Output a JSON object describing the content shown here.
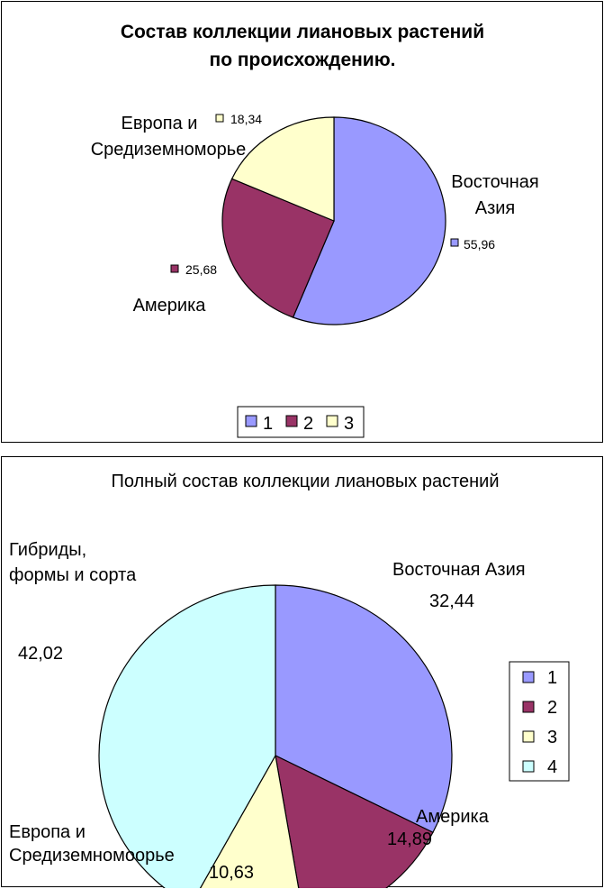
{
  "chart_data": [
    {
      "type": "pie",
      "title": "Состав коллекции лиановых растений по происхождению.",
      "title_lines": [
        "Состав коллекции лиановых растений",
        "по происхождению."
      ],
      "categories": [
        "1",
        "2",
        "3"
      ],
      "slice_names": [
        [
          "Восточная",
          "Азия"
        ],
        [
          "Америка"
        ],
        [
          "Европа и",
          "Средиземноморье"
        ]
      ],
      "values": [
        55.96,
        25.68,
        18.34
      ],
      "value_labels": [
        "55,96",
        "25,68",
        "18,34"
      ],
      "colors": [
        "#9999ff",
        "#993366",
        "#ffffcc"
      ],
      "legend": {
        "position": "bottom",
        "entries": [
          "1",
          "2",
          "3"
        ]
      }
    },
    {
      "type": "pie",
      "title": "Полный состав коллекции лиановых растений",
      "categories": [
        "1",
        "2",
        "3",
        "4"
      ],
      "slice_names": [
        [
          "Восточная Азия"
        ],
        [
          "Америка"
        ],
        [
          "Европа и",
          "Средиземномоорье"
        ],
        [
          "Гибриды,",
          "формы и сорта"
        ]
      ],
      "values": [
        32.44,
        14.89,
        10.63,
        42.02
      ],
      "value_labels": [
        "32,44",
        "14,89",
        "10,63",
        "42,02"
      ],
      "colors": [
        "#9999ff",
        "#993366",
        "#ffffcc",
        "#ccffff"
      ],
      "legend": {
        "position": "right",
        "entries": [
          "1",
          "2",
          "3",
          "4"
        ]
      }
    }
  ]
}
